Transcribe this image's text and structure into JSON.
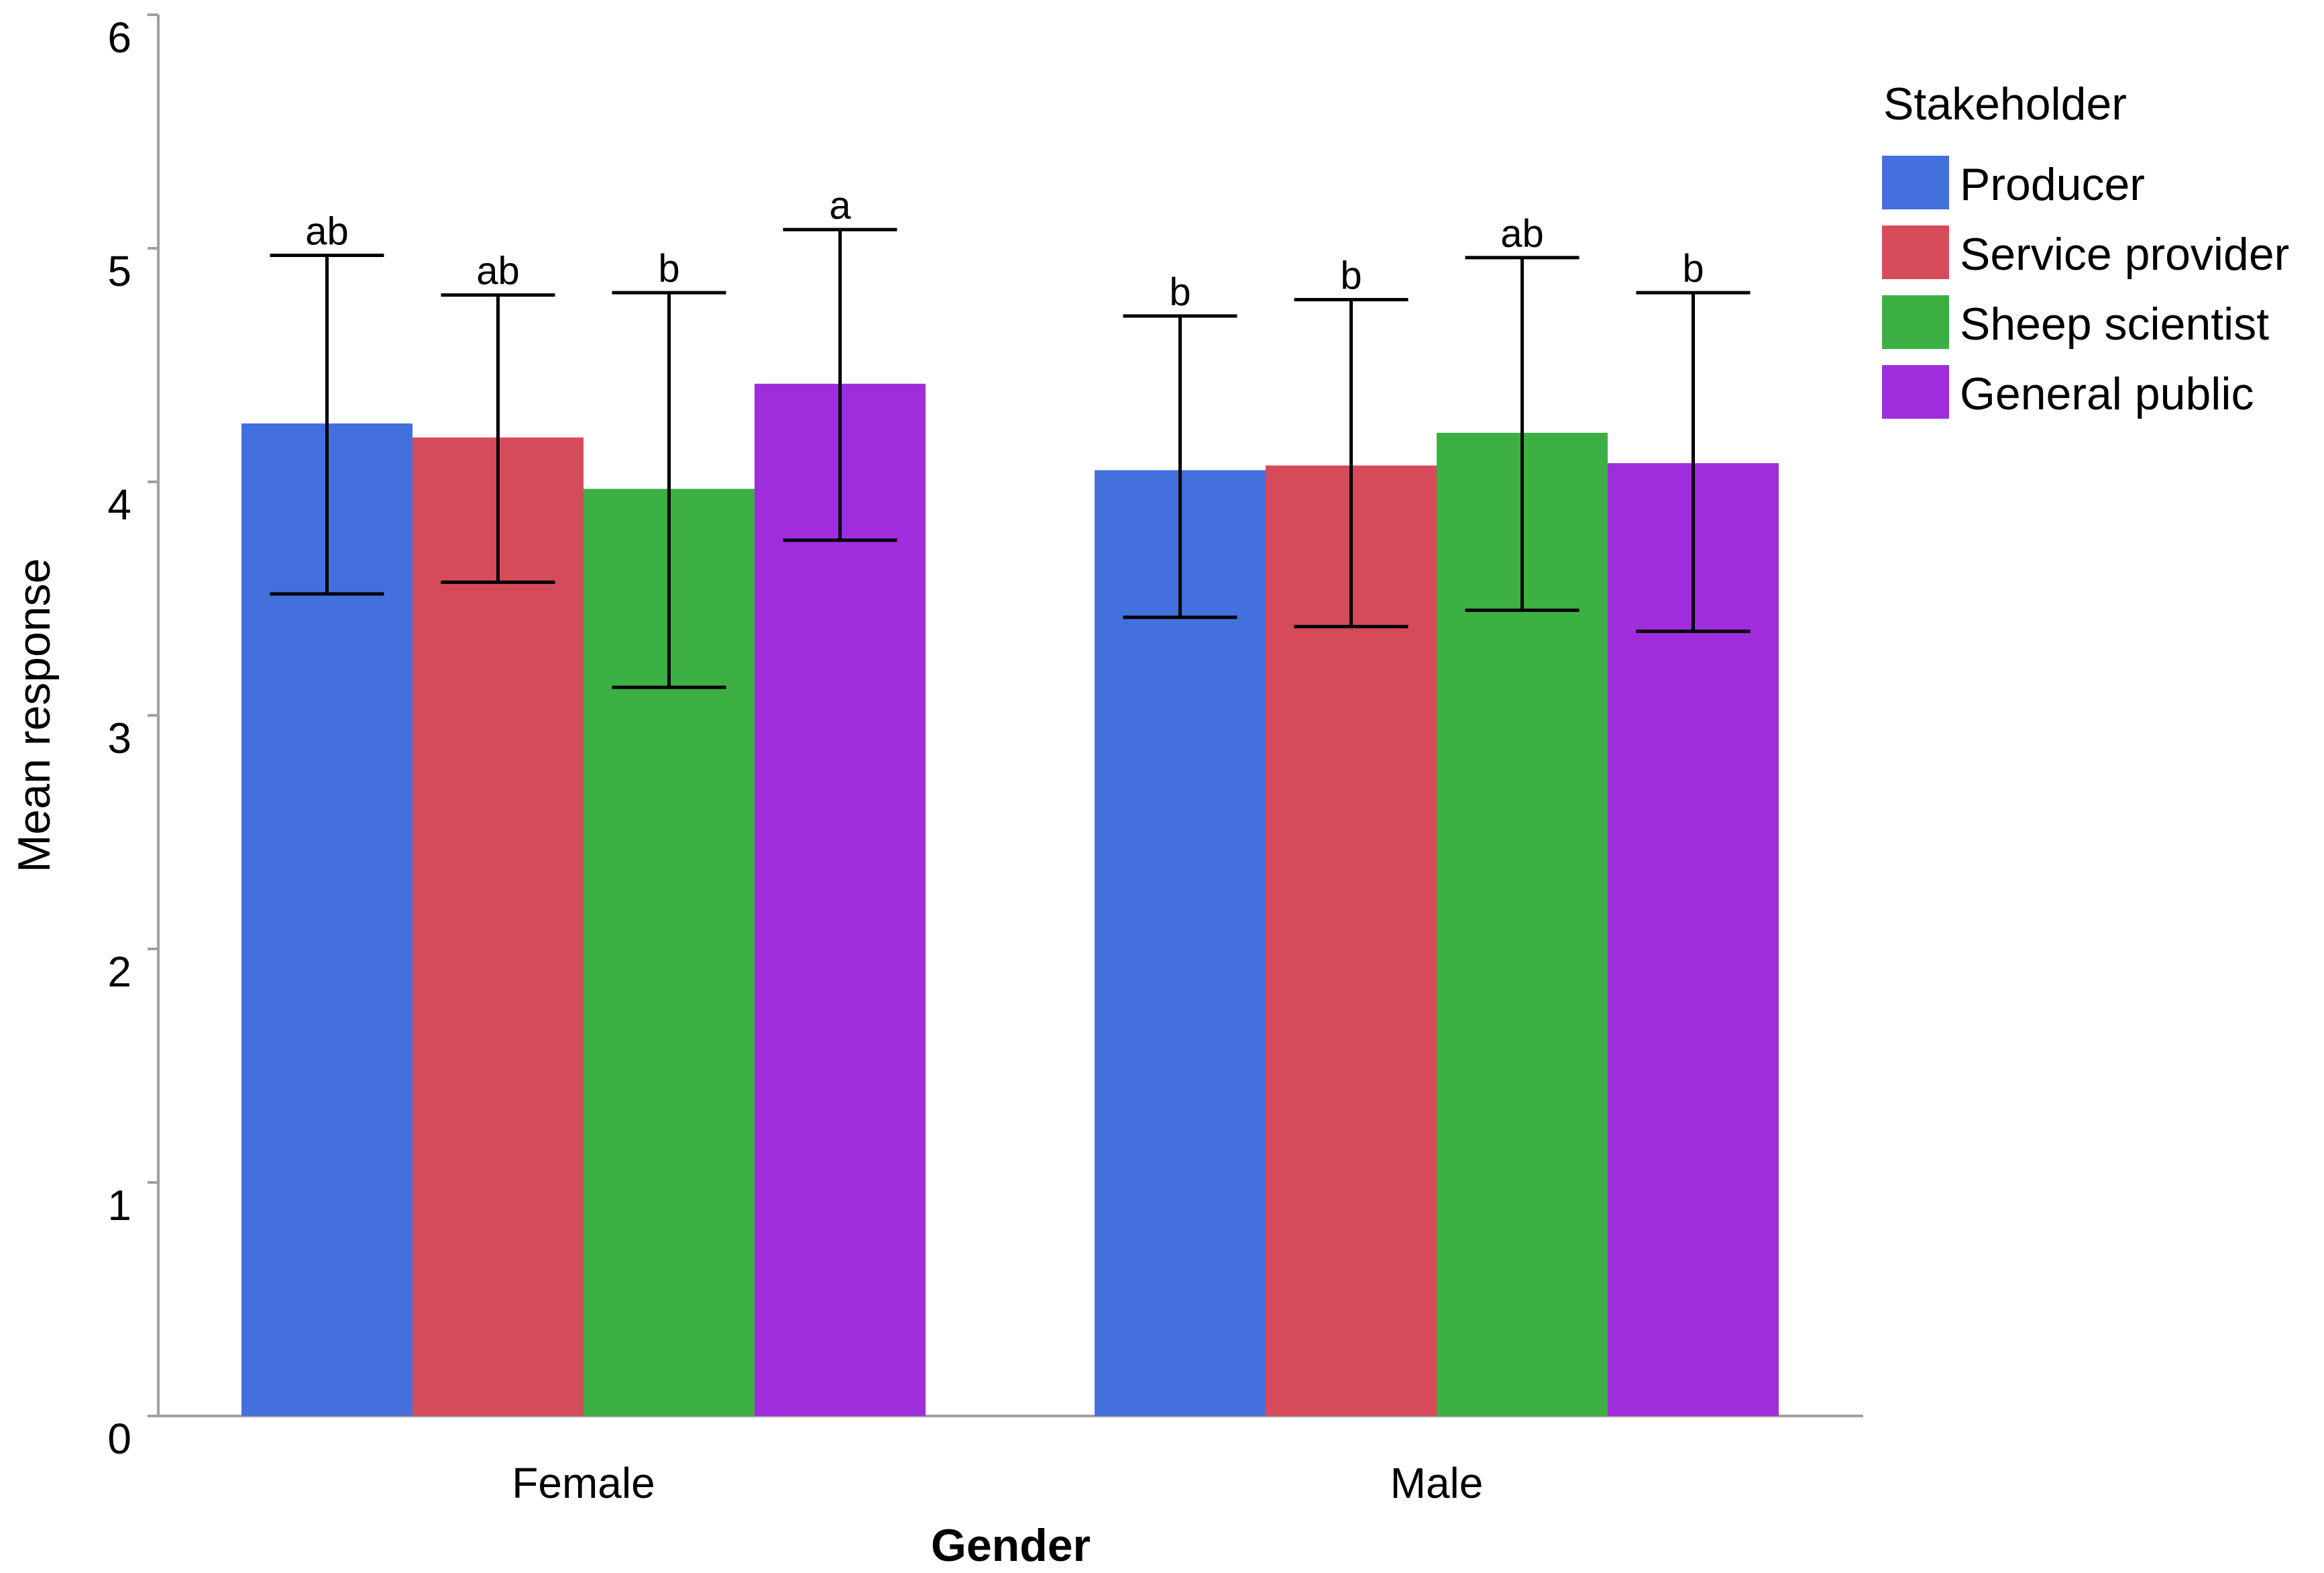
{
  "chart_data": {
    "type": "bar",
    "xlabel": "Gender",
    "ylabel": "Mean response",
    "ylim": [
      0,
      6
    ],
    "yticks": [
      0,
      1,
      2,
      3,
      4,
      5,
      6
    ],
    "categories": [
      "Female",
      "Male"
    ],
    "legend": {
      "title": "Stakeholder",
      "placement": "right"
    },
    "grid": false,
    "series": [
      {
        "name": "Producer",
        "color": "#4271de",
        "values": [
          4.25,
          4.05
        ],
        "error_low": [
          3.52,
          3.42
        ],
        "error_high": [
          4.97,
          4.71
        ],
        "letters": [
          "ab",
          "b"
        ]
      },
      {
        "name": "Service provider",
        "color": "#d64b5a",
        "values": [
          4.19,
          4.07
        ],
        "error_low": [
          3.57,
          3.38
        ],
        "error_high": [
          4.8,
          4.78
        ],
        "letters": [
          "ab",
          "b"
        ]
      },
      {
        "name": "Sheep scientist",
        "color": "#3cb043",
        "values": [
          3.97,
          4.21
        ],
        "error_low": [
          3.12,
          3.45
        ],
        "error_high": [
          4.81,
          4.96
        ],
        "letters": [
          "b",
          "ab"
        ]
      },
      {
        "name": "General public",
        "color": "#a02ddc",
        "values": [
          4.42,
          4.08
        ],
        "error_low": [
          3.75,
          3.36
        ],
        "error_high": [
          5.08,
          4.81
        ],
        "letters": [
          "a",
          "b"
        ]
      }
    ]
  }
}
